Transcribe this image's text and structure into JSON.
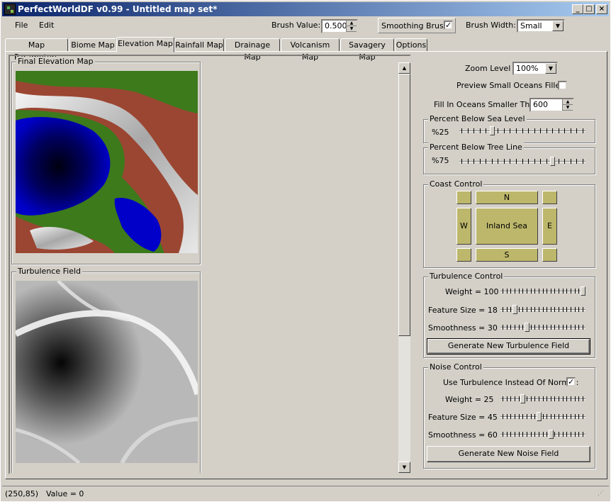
{
  "window": {
    "title": "PerfectWorldDF v0.99 - Untitled map set*",
    "min": "_",
    "max": "□",
    "close": "×"
  },
  "menu": {
    "file": "File",
    "edit": "Edit"
  },
  "toolbar": {
    "brush_value_label": "Brush Value:",
    "brush_value": "0.500",
    "smoothing_label": "Smoothing Brush",
    "smoothing_checked": "✓",
    "brush_width_label": "Brush Width:",
    "brush_width_value": "Small"
  },
  "tabs": [
    "Map Parameters",
    "Biome Map",
    "Elevation Map",
    "Rainfall Map",
    "Drainage Map",
    "Volcanism Map",
    "Savagery Map",
    "Options"
  ],
  "left": {
    "final_elevation_title": "Final Elevation Map",
    "turbulence_field_title": "Turbulence Field"
  },
  "right": {
    "zoom_label": "Zoom Level",
    "zoom_value": "100%",
    "preview_label": "Preview Small Oceans Filled:",
    "fill_label": "Fill In Oceans Smaller Than:",
    "fill_value": "600",
    "sea_title": "Percent Below Sea Level",
    "sea_value_label": "%25",
    "sea_value": 0.25,
    "tree_title": "Percent Below Tree Line",
    "tree_value_label": "%75",
    "tree_value": 0.75,
    "coast_title": "Coast Control",
    "coast_n": "N",
    "coast_w": "W",
    "coast_center": "Inland Sea",
    "coast_e": "E",
    "coast_s": "S",
    "turb_title": "Turbulence Control",
    "turb_weight_label": "Weight = 100",
    "turb_weight": 1.0,
    "turb_feature_label": "Feature Size = 18",
    "turb_feature": 0.15,
    "turb_smooth_label": "Smoothness = 30",
    "turb_smooth": 0.3,
    "turb_button": "Generate New Turbulence Field",
    "noise_title": "Noise Control",
    "noise_use_label": "Use Turbulence Instead Of Normal:",
    "noise_use_checked": "✓",
    "noise_weight_label": "Weight = 25",
    "noise_weight": 0.25,
    "noise_feature_label": "Feature Size = 45",
    "noise_feature": 0.45,
    "noise_smooth_label": "Smoothness = 60",
    "noise_smooth": 0.6,
    "noise_button": "Generate New Noise Field"
  },
  "status": {
    "coords": "(250,85)",
    "value": "Value = 0"
  },
  "colors": {
    "ocean": "#0000c8",
    "deep_ocean": "#000020",
    "lowland": "#3c7a1c",
    "hill": "#9b4632",
    "mountain": "#c8c8c8",
    "coast_button": "#bdb76b"
  }
}
